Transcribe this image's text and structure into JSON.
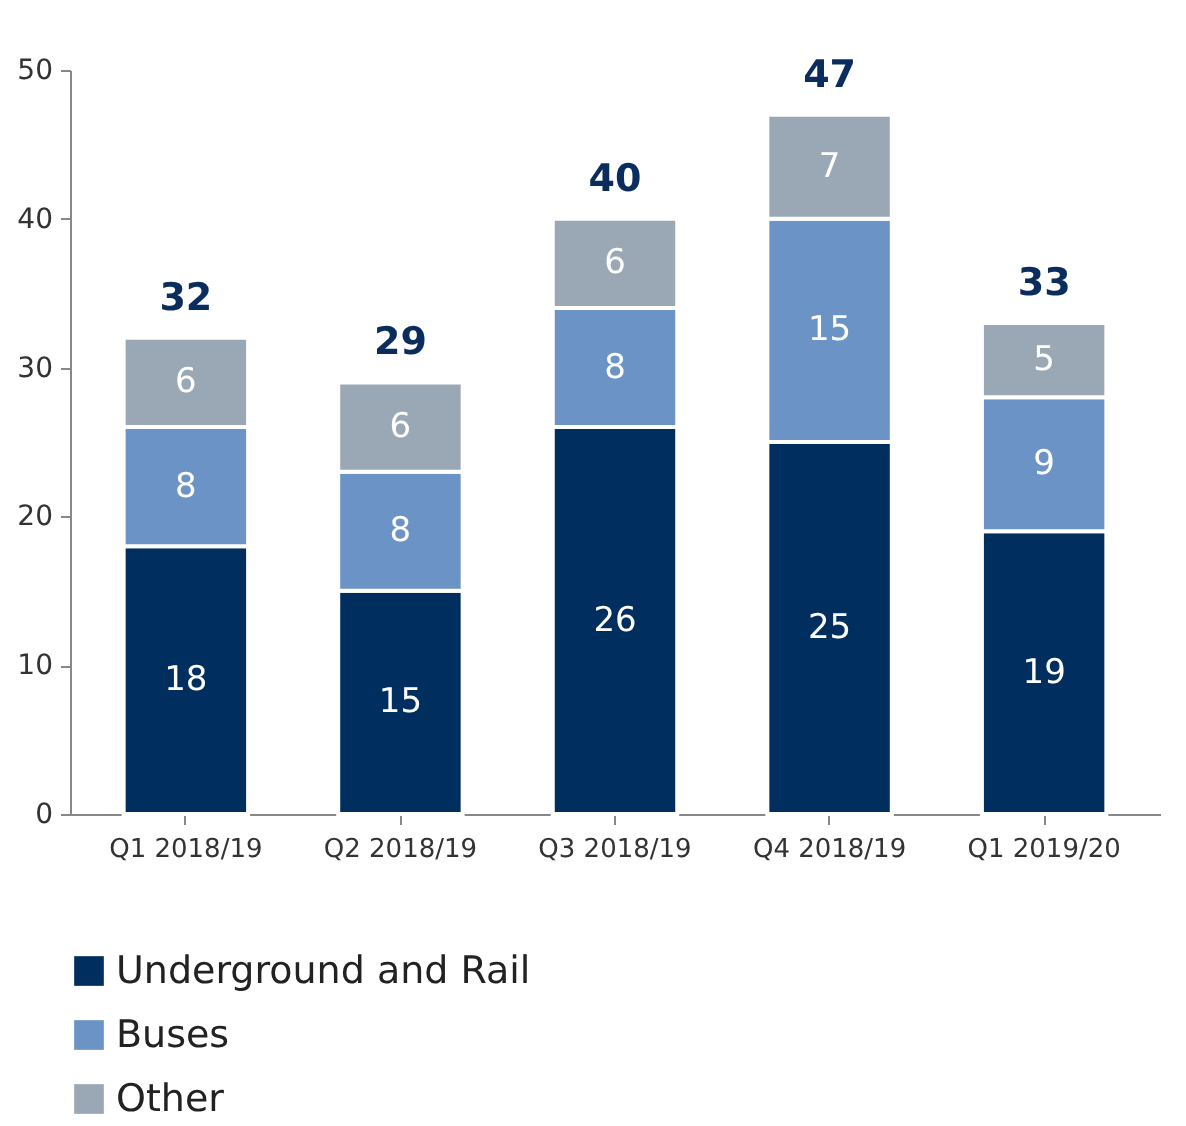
{
  "chart_data": {
    "type": "bar",
    "stacked": true,
    "categories": [
      "Q1 2018/19",
      "Q2 2018/19",
      "Q3 2018/19",
      "Q4 2018/19",
      "Q1 2019/20"
    ],
    "series": [
      {
        "name": "Underground and Rail",
        "color": "#002e5f",
        "values": [
          18,
          15,
          26,
          25,
          19
        ]
      },
      {
        "name": "Buses",
        "color": "#6b93c6",
        "values": [
          8,
          8,
          8,
          15,
          9
        ]
      },
      {
        "name": "Other",
        "color": "#9aa8b6",
        "values": [
          6,
          6,
          6,
          7,
          5
        ]
      }
    ],
    "totals": [
      "32",
      "29",
      "40",
      "47",
      "33"
    ],
    "data_labels": true,
    "ylim": [
      0,
      50
    ],
    "yticks": [
      0,
      10,
      20,
      30,
      40,
      50
    ],
    "grid": false,
    "legend": "bottom"
  }
}
